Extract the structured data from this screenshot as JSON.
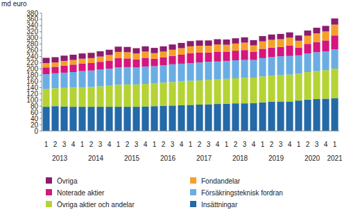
{
  "chart_data": {
    "type": "bar",
    "stacked": true,
    "y_label": "md euro",
    "legend": "bottom",
    "grid": false,
    "categories": [
      "1",
      "2",
      "3",
      "4",
      "1",
      "2",
      "3",
      "4",
      "1",
      "2",
      "3",
      "4",
      "1",
      "2",
      "3",
      "4",
      "1",
      "2",
      "3",
      "4",
      "1",
      "2",
      "3",
      "4",
      "1",
      "2",
      "3",
      "4",
      "1",
      "2",
      "3",
      "4",
      "1"
    ],
    "groups": [
      {
        "label": "2013",
        "start": 0,
        "end": 3
      },
      {
        "label": "2014",
        "start": 4,
        "end": 7
      },
      {
        "label": "2015",
        "start": 8,
        "end": 11
      },
      {
        "label": "2016",
        "start": 12,
        "end": 15
      },
      {
        "label": "2017",
        "start": 16,
        "end": 19
      },
      {
        "label": "2018",
        "start": 20,
        "end": 23
      },
      {
        "label": "2019",
        "start": 24,
        "end": 27
      },
      {
        "label": "2020",
        "start": 28,
        "end": 31
      },
      {
        "label": "2021",
        "start": 32,
        "end": 32
      }
    ],
    "ylim": [
      0,
      380
    ],
    "yticks": [
      0,
      20,
      40,
      60,
      80,
      100,
      120,
      140,
      160,
      180,
      200,
      220,
      240,
      260,
      280,
      300,
      320,
      340,
      360,
      380
    ],
    "series": [
      {
        "name": "Insättningar",
        "color": "#2469a8",
        "values": [
          78,
          80,
          79,
          78,
          78,
          78,
          78,
          78,
          78,
          78,
          78,
          79,
          80,
          81,
          82,
          83,
          84,
          85,
          86,
          87,
          88,
          89,
          89,
          90,
          92,
          94,
          95,
          95,
          98,
          101,
          103,
          104,
          106
        ]
      },
      {
        "name": "Övriga aktier och andelar",
        "color": "#b5d334",
        "values": [
          57,
          58,
          60,
          62,
          63,
          64,
          66,
          68,
          71,
          72,
          72,
          73,
          74,
          75,
          76,
          77,
          78,
          78,
          79,
          79,
          80,
          81,
          82,
          82,
          84,
          85,
          86,
          87,
          87,
          89,
          90,
          92,
          95
        ]
      },
      {
        "name": "Försäkringsteknisk fordran",
        "color": "#6aade4",
        "values": [
          48,
          48,
          49,
          50,
          52,
          53,
          54,
          55,
          56,
          56,
          55,
          56,
          55,
          56,
          57,
          57,
          57,
          58,
          58,
          58,
          58,
          58,
          58,
          57,
          59,
          59,
          60,
          60,
          59,
          60,
          61,
          61,
          62
        ]
      },
      {
        "name": "Noterade aktier",
        "color": "#d6157e",
        "values": [
          22,
          21,
          23,
          24,
          24,
          24,
          25,
          26,
          30,
          28,
          26,
          28,
          24,
          25,
          27,
          29,
          32,
          32,
          30,
          32,
          30,
          31,
          32,
          26,
          30,
          31,
          30,
          33,
          25,
          31,
          33,
          35,
          45
        ]
      },
      {
        "name": "Fondandelar",
        "color": "#f5a02c",
        "values": [
          14,
          14,
          15,
          15,
          16,
          16,
          17,
          18,
          20,
          20,
          19,
          20,
          18,
          19,
          20,
          21,
          22,
          22,
          22,
          23,
          22,
          23,
          24,
          21,
          24,
          25,
          25,
          26,
          22,
          26,
          28,
          29,
          35
        ]
      },
      {
        "name": "Övriga",
        "color": "#8a1d6d",
        "values": [
          17,
          17,
          17,
          17,
          17,
          17,
          17,
          17,
          17,
          17,
          17,
          17,
          17,
          17,
          17,
          17,
          17,
          17,
          17,
          17,
          17,
          17,
          17,
          17,
          17,
          17,
          17,
          17,
          17,
          17,
          18,
          18,
          20
        ]
      }
    ]
  }
}
